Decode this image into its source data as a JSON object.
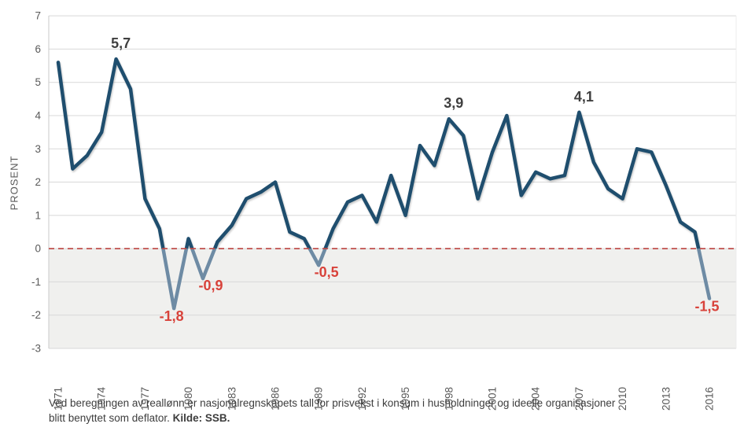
{
  "y_axis": {
    "title": "PROSENT",
    "ticks": [
      7,
      6,
      5,
      4,
      3,
      2,
      1,
      0,
      -1,
      -2,
      -3
    ]
  },
  "x_axis": {
    "tick_labels": [
      "1971",
      "1974",
      "1977",
      "1980",
      "1983",
      "1986",
      "1989",
      "1992",
      "1995",
      "1998",
      "2001",
      "2004",
      "2007",
      "2010",
      "2013",
      "2016"
    ]
  },
  "caption": {
    "text": "Ved beregningen av reallønn er nasjonalregnskapets tall for prisvekst i konsum i husholdninger og ideelle organisasjoner blitt benyttet som deflator. ",
    "source": "Kilde: SSB."
  },
  "colors": {
    "line": "#1f4e6e",
    "line_below_zero": "#6e8ba4",
    "zero_line": "#bf4e4b",
    "grid": "#d8d8d8",
    "axis_text": "#595959",
    "positive_label": "#3f3f3f",
    "negative_label": "#d8423a",
    "below_zero_bg": "#f0f0ee"
  },
  "chart_data": {
    "type": "line",
    "title": "",
    "xlabel": "",
    "ylabel": "PROSENT",
    "ylim": [
      -3,
      7
    ],
    "grid": true,
    "legend": "none",
    "zero_line": {
      "style": "dashed",
      "color": "#bf4e4b"
    },
    "below_zero_shading": true,
    "yticks": [
      7,
      6,
      5,
      4,
      3,
      2,
      1,
      0,
      -1,
      -2,
      -3
    ],
    "xticks": [
      1971,
      1974,
      1977,
      1980,
      1983,
      1986,
      1989,
      1992,
      1995,
      1998,
      2001,
      2004,
      2007,
      2010,
      2013,
      2016
    ],
    "x": [
      1971,
      1972,
      1973,
      1974,
      1975,
      1976,
      1977,
      1978,
      1979,
      1980,
      1981,
      1982,
      1983,
      1984,
      1985,
      1986,
      1987,
      1988,
      1989,
      1990,
      1991,
      1992,
      1993,
      1994,
      1995,
      1996,
      1997,
      1998,
      1999,
      2000,
      2001,
      2002,
      2003,
      2004,
      2005,
      2006,
      2007,
      2008,
      2009,
      2010,
      2011,
      2012,
      2013,
      2014,
      2015,
      2016
    ],
    "values": [
      5.6,
      2.4,
      2.8,
      3.5,
      5.7,
      4.8,
      1.5,
      0.6,
      -1.8,
      0.3,
      -0.9,
      0.2,
      0.7,
      1.5,
      1.7,
      2.0,
      0.5,
      0.3,
      -0.5,
      0.6,
      1.4,
      1.6,
      0.8,
      2.2,
      1.0,
      3.1,
      2.5,
      3.9,
      3.4,
      1.5,
      2.9,
      4.0,
      1.6,
      2.3,
      2.1,
      2.2,
      4.1,
      2.6,
      1.8,
      1.5,
      3.0,
      2.9,
      1.9,
      0.8,
      0.5,
      -1.5
    ],
    "annotations": [
      {
        "x": 1975,
        "y": 5.7,
        "label": "5,7",
        "placement": "above",
        "sign": "positive"
      },
      {
        "x": 1979,
        "y": -1.8,
        "label": "-1,8",
        "placement": "below",
        "sign": "negative"
      },
      {
        "x": 1981,
        "y": -0.9,
        "label": "-0,9",
        "placement": "below-right",
        "sign": "negative"
      },
      {
        "x": 1989,
        "y": -0.5,
        "label": "-0,5",
        "placement": "below-right",
        "sign": "negative"
      },
      {
        "x": 1998,
        "y": 3.9,
        "label": "3,9",
        "placement": "above",
        "sign": "positive"
      },
      {
        "x": 2007,
        "y": 4.1,
        "label": "4,1",
        "placement": "above",
        "sign": "positive"
      },
      {
        "x": 2016,
        "y": -1.5,
        "label": "-1,5",
        "placement": "below",
        "sign": "negative"
      }
    ]
  }
}
